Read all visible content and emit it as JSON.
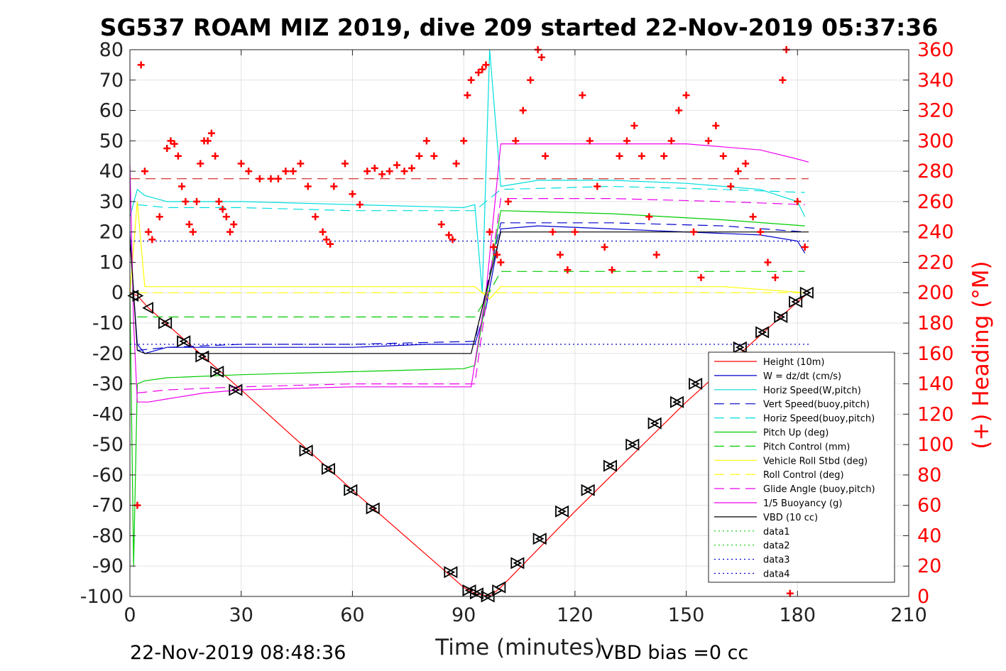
{
  "chart_data": {
    "type": "line",
    "title": "SG537 ROAM MIZ 2019, dive 209 started 22-Nov-2019 05:37:36",
    "xlabel": "Time (minutes)",
    "ylabel": "",
    "ylabel_right": "(+) Heading (°M)",
    "xlim": [
      0,
      210
    ],
    "ylim": [
      -100,
      80
    ],
    "ylim_right": [
      0,
      360
    ],
    "x_ticks": [
      "0",
      "30",
      "60",
      "90",
      "120",
      "150",
      "180",
      "210"
    ],
    "y_ticks": [
      "-100",
      "-90",
      "-80",
      "-70",
      "-60",
      "-50",
      "-40",
      "-30",
      "-20",
      "-10",
      "0",
      "10",
      "20",
      "30",
      "40",
      "50",
      "60",
      "70",
      "80"
    ],
    "y_ticks_right": [
      "0",
      "20",
      "40",
      "60",
      "80",
      "100",
      "120",
      "140",
      "160",
      "180",
      "200",
      "220",
      "240",
      "260",
      "280",
      "300",
      "320",
      "340",
      "360"
    ],
    "grid": true,
    "legend_position": "bottom-right",
    "footer_left": "22-Nov-2019 08:48:36",
    "footer_right": "VBD bias =0 cc",
    "series": [
      {
        "name": "Height (10m)",
        "color": "#ff0000",
        "style": "solid",
        "x": [
          0,
          2,
          5,
          30,
          60,
          90,
          93,
          97,
          100,
          120,
          150,
          180,
          183
        ],
        "y": [
          0,
          -1,
          -5,
          -32,
          -65,
          -97,
          -99,
          -100,
          -97,
          -72,
          -36,
          -3,
          0
        ]
      },
      {
        "name": "W = dz/dt (cm/s)",
        "color": "#0000cc",
        "style": "solid",
        "x": [
          0,
          1,
          2,
          4,
          10,
          30,
          60,
          80,
          93,
          96,
          100,
          110,
          130,
          150,
          170,
          180,
          182
        ],
        "y": [
          20,
          0,
          -17,
          -20,
          -18,
          -18,
          -18,
          -17,
          -17,
          -5,
          21,
          22,
          21,
          20,
          19,
          17,
          13
        ]
      },
      {
        "name": "Horiz Speed(W,pitch)",
        "color": "#00dddd",
        "style": "solid",
        "x": [
          0,
          2,
          4,
          10,
          30,
          60,
          90,
          93,
          95,
          97,
          100,
          110,
          130,
          150,
          170,
          180,
          182
        ],
        "y": [
          25,
          34,
          32,
          30,
          30,
          29,
          28,
          29,
          0,
          80,
          35,
          37,
          37,
          36,
          34,
          30,
          25
        ]
      },
      {
        "name": "Vert Speed(buoy,pitch)",
        "color": "#0000cc",
        "style": "dashed",
        "x": [
          2,
          10,
          30,
          60,
          93,
          100,
          130,
          160,
          182
        ],
        "y": [
          -19,
          -18,
          -17,
          -17,
          -16,
          23,
          23,
          22,
          20
        ]
      },
      {
        "name": "Horiz Speed(buoy,pitch)",
        "color": "#00dddd",
        "style": "dashed",
        "x": [
          2,
          10,
          30,
          60,
          93,
          100,
          130,
          160,
          182
        ],
        "y": [
          29,
          28,
          28,
          27,
          27,
          34,
          35,
          34,
          33
        ]
      },
      {
        "name": "Pitch Up (deg)",
        "color": "#00cc00",
        "style": "solid",
        "x": [
          0,
          1,
          2,
          4,
          10,
          30,
          60,
          90,
          93,
          100,
          130,
          160,
          182
        ],
        "y": [
          0,
          -90,
          -30,
          -29,
          -28,
          -27,
          -26,
          -25,
          -24,
          27,
          26,
          24,
          22
        ]
      },
      {
        "name": "Pitch Control (mm)",
        "color": "#00cc00",
        "style": "dashed",
        "x": [
          2,
          10,
          30,
          60,
          93,
          96,
          100,
          130,
          160,
          182
        ],
        "y": [
          -8,
          -8,
          -8,
          -8,
          -8,
          -2,
          7,
          7,
          7,
          7
        ]
      },
      {
        "name": "Vehicle Roll Stbd (deg)",
        "color": "#ffff00",
        "style": "solid",
        "x": [
          0,
          2,
          4,
          10,
          30,
          60,
          90,
          93,
          97,
          100,
          130,
          160,
          182
        ],
        "y": [
          0,
          30,
          2,
          2,
          2,
          2,
          2,
          2,
          -2,
          2,
          2,
          2,
          0
        ]
      },
      {
        "name": "Roll Control (deg)",
        "color": "#ffff00",
        "style": "dashed",
        "x": [
          2,
          10,
          30,
          60,
          93,
          100,
          130,
          160,
          182
        ],
        "y": [
          0,
          0,
          0,
          0,
          0,
          0,
          0,
          0,
          0
        ]
      },
      {
        "name": "Glide Angle (buoy,pitch)",
        "color": "#ee00ee",
        "style": "dashed",
        "x": [
          2,
          10,
          30,
          60,
          93,
          100,
          130,
          160,
          182
        ],
        "y": [
          -33,
          -32,
          -31,
          -30,
          -30,
          31,
          31,
          30,
          29
        ]
      },
      {
        "name": "1/5 Buoyancy (g)",
        "color": "#ee00ee",
        "style": "solid",
        "x": [
          0,
          1,
          2,
          5,
          10,
          20,
          30,
          60,
          90,
          92,
          96,
          100,
          130,
          150,
          170,
          180,
          183
        ],
        "y": [
          42,
          -10,
          -36,
          -36,
          -35,
          -33,
          -32,
          -31,
          -31,
          -31,
          0,
          49,
          49,
          49,
          47,
          44,
          43
        ]
      },
      {
        "name": "VBD (10 cc)",
        "color": "#000000",
        "style": "solid",
        "x": [
          0,
          1,
          2,
          4,
          30,
          60,
          90,
          92,
          96,
          100,
          183
        ],
        "y": [
          18,
          0,
          -19,
          -20,
          -20,
          -20,
          -20,
          -20,
          0,
          20,
          20
        ]
      },
      {
        "name": "data1",
        "color": "#00cc00",
        "style": "dotted",
        "x": [],
        "y": []
      },
      {
        "name": "data2",
        "color": "#00cc00",
        "style": "dotted",
        "x": [],
        "y": []
      },
      {
        "name": "data3",
        "color": "#0000cc",
        "style": "dotted",
        "x": [
          0,
          183
        ],
        "y": [
          17,
          17
        ]
      },
      {
        "name": "data4",
        "color": "#0000cc",
        "style": "dotted",
        "x": [
          0,
          183
        ],
        "y": [
          -17,
          -17
        ]
      }
    ],
    "reference_lines": [
      {
        "color": "#cc0000",
        "style": "dashed",
        "y": 37.5,
        "x": [
          0,
          183
        ]
      }
    ],
    "heading": {
      "axis": "right",
      "marker": "+",
      "color": "#ff0000",
      "x": [
        2,
        3,
        4,
        5,
        6,
        8,
        10,
        11,
        12,
        13,
        14,
        15,
        16,
        17,
        18,
        19,
        20,
        21,
        22,
        23,
        24,
        25,
        26,
        27,
        28,
        30,
        32,
        35,
        38,
        40,
        42,
        44,
        46,
        48,
        50,
        52,
        53,
        54,
        55,
        58,
        60,
        62,
        64,
        66,
        68,
        70,
        72,
        74,
        76,
        78,
        80,
        82,
        84,
        86,
        87,
        88,
        90,
        91,
        92,
        94,
        95,
        96,
        97,
        98,
        99,
        100,
        102,
        104,
        106,
        108,
        110,
        111,
        112,
        114,
        116,
        118,
        120,
        122,
        124,
        126,
        128,
        130,
        132,
        134,
        136,
        138,
        140,
        142,
        144,
        146,
        148,
        150,
        152,
        154,
        156,
        158,
        160,
        162,
        164,
        166,
        168,
        170,
        172,
        174,
        176,
        177,
        178,
        180,
        182
      ],
      "y": [
        60,
        350,
        280,
        240,
        235,
        250,
        295,
        300,
        298,
        290,
        270,
        260,
        245,
        240,
        260,
        285,
        300,
        300,
        305,
        290,
        260,
        255,
        250,
        240,
        245,
        285,
        280,
        275,
        275,
        275,
        280,
        280,
        285,
        270,
        250,
        240,
        235,
        232,
        270,
        285,
        265,
        258,
        280,
        282,
        278,
        280,
        284,
        280,
        282,
        290,
        300,
        290,
        245,
        238,
        235,
        285,
        300,
        330,
        340,
        345,
        347,
        350,
        240,
        230,
        225,
        220,
        260,
        300,
        320,
        340,
        360,
        355,
        290,
        240,
        225,
        215,
        240,
        330,
        300,
        270,
        230,
        215,
        290,
        300,
        310,
        290,
        250,
        225,
        290,
        300,
        320,
        330,
        240,
        210,
        300,
        310,
        290,
        270,
        280,
        285,
        250,
        240,
        220,
        210,
        340,
        360,
        2,
        260,
        230
      ]
    },
    "depth_markers": {
      "marker": "triangle",
      "color": "#000000",
      "x": [
        1,
        2,
        5,
        9,
        10,
        14,
        15,
        19,
        20,
        23,
        24,
        28,
        29,
        47,
        48,
        53,
        54,
        59,
        60,
        65,
        66,
        86,
        87,
        91,
        92,
        93,
        94,
        96,
        97,
        99,
        100,
        104,
        105,
        110,
        111,
        116,
        117,
        123,
        124,
        129,
        130,
        135,
        136,
        141,
        142,
        147,
        148,
        152,
        153,
        158,
        159,
        164,
        165,
        170,
        171,
        175,
        176,
        179,
        180,
        182,
        183
      ],
      "y": [
        -1,
        -1,
        -5,
        -10,
        -10,
        -16,
        -16,
        -21,
        -21,
        -26,
        -26,
        -32,
        -32,
        -52,
        -52,
        -58,
        -58,
        -65,
        -65,
        -71,
        -71,
        -92,
        -92,
        -98,
        -98,
        -99,
        -99,
        -100,
        -100,
        -98,
        -97,
        -89,
        -89,
        -81,
        -81,
        -72,
        -72,
        -65,
        -65,
        -57,
        -57,
        -50,
        -50,
        -43,
        -43,
        -36,
        -36,
        -30,
        -30,
        -24,
        -24,
        -18,
        -18,
        -13,
        -13,
        -8,
        -8,
        -3,
        -3,
        0,
        0
      ]
    }
  }
}
